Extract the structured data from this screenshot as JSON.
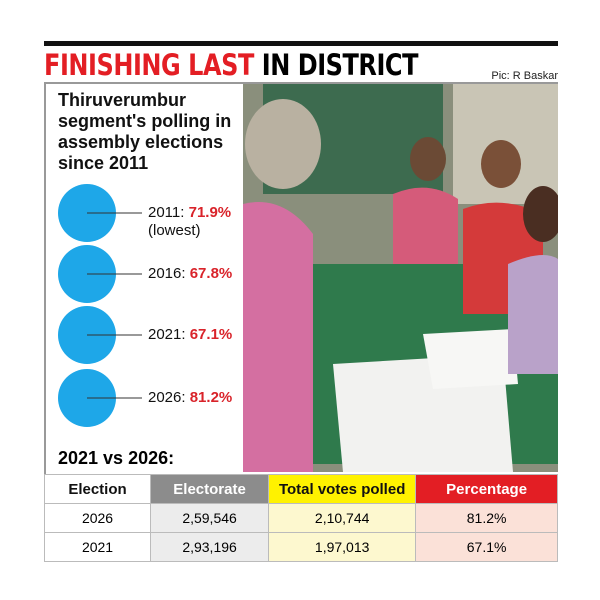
{
  "header": {
    "title_red": "FINISHING LAST",
    "title_black": "IN DISTRICT",
    "credit": "Pic: R Baskar"
  },
  "panel": {
    "heading": "Thiruverumbur segment's polling in assembly elections since 2011",
    "items": [
      {
        "label": "2011:",
        "value": "71.9%",
        "note": "(lowest)"
      },
      {
        "label": "2016:",
        "value": "67.8%"
      },
      {
        "label": "2021:",
        "value": "67.1%"
      },
      {
        "label": "2026:",
        "value": "81.2%"
      }
    ]
  },
  "table": {
    "title": "2021 vs 2026:",
    "columns": [
      "Election",
      "Electorate",
      "Total votes polled",
      "Percentage"
    ],
    "rows": [
      [
        "2026",
        "2,59,546",
        "2,10,744",
        "81.2%"
      ],
      [
        "2021",
        "2,93,196",
        "1,97,013",
        "67.1%"
      ]
    ]
  }
}
